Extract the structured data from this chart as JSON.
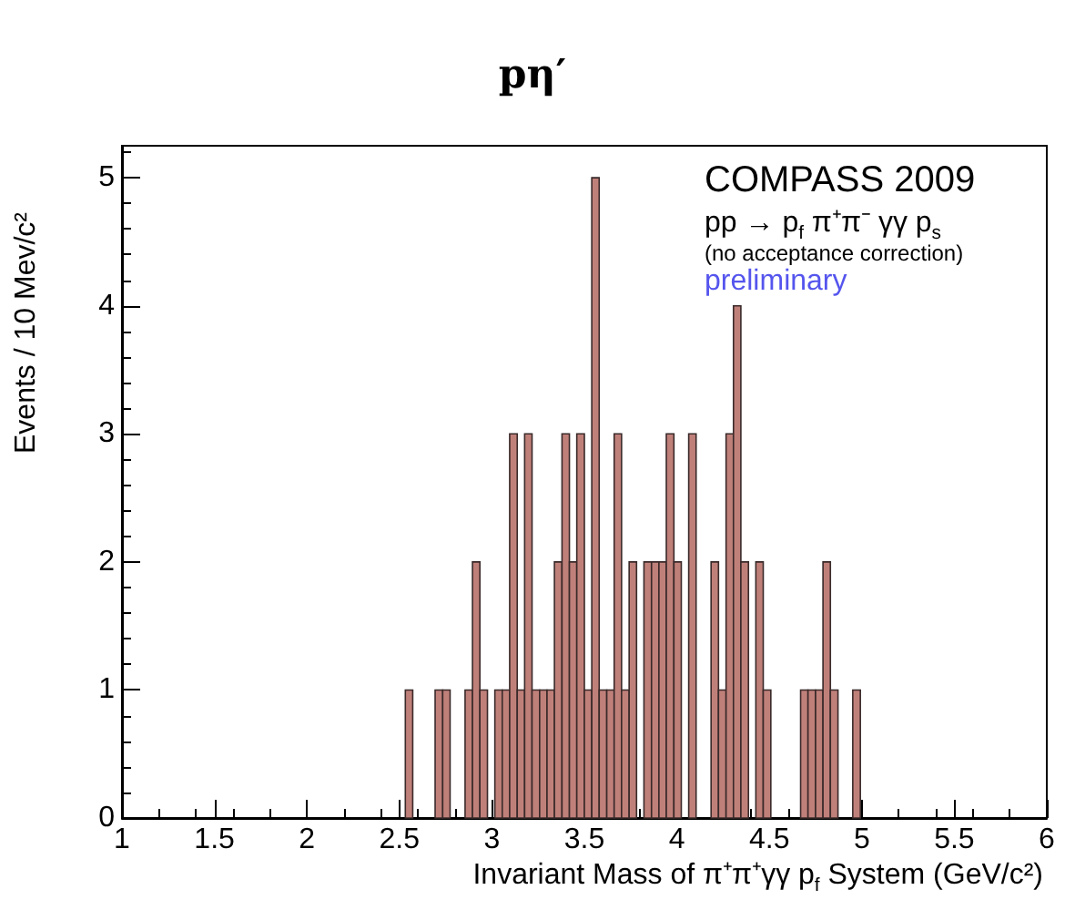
{
  "chart_data": {
    "type": "histogram",
    "title": "pη′",
    "xlabel": "Invariant Mass of π⁺π⁺γγ p$_{f}$ System (GeV/c²)",
    "ylabel": "Events / 10 Mev/c²",
    "annotations": [
      "COMPASS 2009",
      "pp → p$_{f}$ π⁺π⁻ γγ p$_{s}$",
      "(no acceptance correction)",
      "preliminary"
    ],
    "bins": [
      2.532,
      2.572,
      2.613,
      2.653,
      2.693,
      2.734,
      2.774,
      2.814,
      2.855,
      2.895,
      2.935,
      2.976,
      3.016,
      3.056,
      3.096,
      3.137,
      3.177,
      3.217,
      3.258,
      3.298,
      3.338,
      3.379,
      3.419,
      3.459,
      3.5,
      3.54,
      3.58,
      3.621,
      3.661,
      3.701,
      3.742,
      3.782,
      3.822,
      3.863,
      3.903,
      3.943,
      3.984,
      4.024,
      4.064,
      4.104,
      4.145,
      4.185,
      4.225,
      4.266,
      4.306,
      4.346,
      4.387,
      4.427,
      4.467,
      4.508,
      4.548,
      4.588,
      4.629,
      4.669,
      4.709,
      4.75,
      4.79,
      4.83,
      4.871,
      4.911,
      4.951,
      4.992
    ],
    "values": [
      1,
      0,
      0,
      0,
      1,
      1,
      0,
      0,
      1,
      2,
      1,
      0,
      1,
      1,
      3,
      1,
      3,
      1,
      1,
      1,
      2,
      3,
      2,
      3,
      1,
      5,
      1,
      1,
      3,
      1,
      2,
      0,
      2,
      2,
      2,
      3,
      2,
      0,
      3,
      0,
      0,
      2,
      1,
      3,
      4,
      2,
      0,
      2,
      1,
      0,
      0,
      0,
      0,
      1,
      1,
      1,
      2,
      1,
      0,
      0,
      1
    ],
    "color": "#c0807a",
    "xlim": [
      1,
      6
    ],
    "xticks": [
      1,
      1.5,
      2,
      2.5,
      3,
      3.5,
      4,
      4.5,
      5,
      5.5,
      6
    ],
    "ylim": [
      0,
      5.25
    ],
    "yticks": [
      0,
      1,
      2,
      3,
      4,
      5
    ],
    "grid": false
  }
}
